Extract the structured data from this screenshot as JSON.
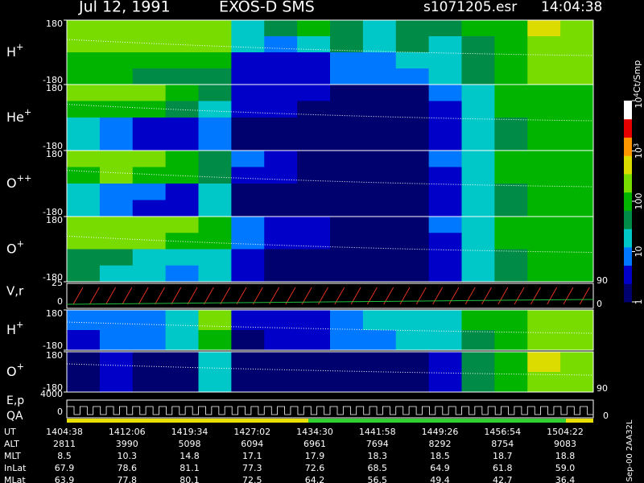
{
  "header": {
    "date": "Jul 12, 1991",
    "instrument": "EXOS-D SMS",
    "file": "s1071205.esr",
    "time": "14:04:38"
  },
  "colorscale": [
    "#00006e",
    "#0000c8",
    "#0078ff",
    "#00c8c8",
    "#008c46",
    "#00b400",
    "#78dc00",
    "#dcdc00",
    "#ff9600",
    "#e60000",
    "#ffffff"
  ],
  "panels": [
    {
      "ion": "H",
      "charge": "+",
      "ylim": [
        -180,
        180
      ],
      "yticks": [
        180,
        -180
      ],
      "levels": [
        [
          2.3,
          2.4,
          2.3,
          2.5,
          2.4,
          1.2,
          1.5,
          1.8,
          1.4,
          1.3,
          1.6,
          1.5,
          1.8,
          2.0,
          2.6,
          2.4
        ],
        [
          2.5,
          2.4,
          2.2,
          2.3,
          2.2,
          1.0,
          0.6,
          1.0,
          1.5,
          1.2,
          1.4,
          1.3,
          1.7,
          2.0,
          2.5,
          2.5
        ],
        [
          2.0,
          2.1,
          2.0,
          1.9,
          1.8,
          0.5,
          0.4,
          0.5,
          0.8,
          0.9,
          1.0,
          1.1,
          1.6,
          1.9,
          2.3,
          2.4
        ],
        [
          1.8,
          1.9,
          1.7,
          1.6,
          1.5,
          0.4,
          0.3,
          0.4,
          0.6,
          0.7,
          0.8,
          1.0,
          1.5,
          1.9,
          2.2,
          2.3
        ]
      ]
    },
    {
      "ion": "He",
      "charge": "+",
      "ylim": [
        -180,
        180
      ],
      "yticks": [
        180,
        -180
      ],
      "levels": [
        [
          2.2,
          2.3,
          2.2,
          2.0,
          1.4,
          0.3,
          0.2,
          0.2,
          0.1,
          0.1,
          0.1,
          0.6,
          1.2,
          1.8,
          2.0,
          2.1
        ],
        [
          2.0,
          2.1,
          1.8,
          1.5,
          1.3,
          0.3,
          0.2,
          0.1,
          0.1,
          0.1,
          0.1,
          0.5,
          1.1,
          1.8,
          2.0,
          2.1
        ],
        [
          1.0,
          0.8,
          0.5,
          0.4,
          0.9,
          0.1,
          0.1,
          0.1,
          0.1,
          0.1,
          0.1,
          0.5,
          1.1,
          1.7,
          2.0,
          2.0
        ],
        [
          1.1,
          0.6,
          0.3,
          0.3,
          0.9,
          0.1,
          0.1,
          0.1,
          0.1,
          0.1,
          0.1,
          0.4,
          1.0,
          1.7,
          1.9,
          2.0
        ]
      ]
    },
    {
      "ion": "O",
      "charge": "++",
      "ylim": [
        -180,
        180
      ],
      "yticks": [
        180,
        -180
      ],
      "levels": [
        [
          2.3,
          2.3,
          2.2,
          2.1,
          1.6,
          0.6,
          0.3,
          0.1,
          0.1,
          0.1,
          0.1,
          0.6,
          1.2,
          1.8,
          2.0,
          2.1
        ],
        [
          2.1,
          2.2,
          2.0,
          1.8,
          1.5,
          0.5,
          0.3,
          0.1,
          0.1,
          0.1,
          0.1,
          0.5,
          1.1,
          1.8,
          2.0,
          2.1
        ],
        [
          1.0,
          0.9,
          0.6,
          0.5,
          1.0,
          0.1,
          0.1,
          0.1,
          0.1,
          0.1,
          0.1,
          0.4,
          1.1,
          1.7,
          2.0,
          2.0
        ],
        [
          1.1,
          0.7,
          0.4,
          0.4,
          1.0,
          0.1,
          0.1,
          0.1,
          0.1,
          0.1,
          0.1,
          0.4,
          1.0,
          1.7,
          1.9,
          2.0
        ]
      ]
    },
    {
      "ion": "O",
      "charge": "+",
      "ylim": [
        -180,
        180
      ],
      "yticks": [
        180,
        -180
      ],
      "levels": [
        [
          2.4,
          2.4,
          2.3,
          2.2,
          1.8,
          0.8,
          0.4,
          0.2,
          0.1,
          0.1,
          0.1,
          0.6,
          1.2,
          1.8,
          2.0,
          2.1
        ],
        [
          2.3,
          2.3,
          2.2,
          2.1,
          1.9,
          0.6,
          0.4,
          0.2,
          0.1,
          0.1,
          0.1,
          0.5,
          1.1,
          1.8,
          2.0,
          2.1
        ],
        [
          1.6,
          1.5,
          1.2,
          1.1,
          1.3,
          0.2,
          0.1,
          0.1,
          0.1,
          0.1,
          0.1,
          0.5,
          1.1,
          1.7,
          2.0,
          2.0
        ],
        [
          1.5,
          1.2,
          1.0,
          0.9,
          1.2,
          0.2,
          0.1,
          0.1,
          0.1,
          0.1,
          0.1,
          0.4,
          1.0,
          1.7,
          1.9,
          2.0
        ]
      ]
    }
  ],
  "vr": {
    "label": "V,r",
    "yticks": [
      25,
      0
    ],
    "y2ticks": [
      90,
      0
    ]
  },
  "lower": [
    {
      "ion": "H",
      "charge": "+",
      "ylim": [
        -180,
        180
      ],
      "yticks": [
        180,
        -180
      ],
      "levels": [
        [
          0.6,
          0.9,
          0.8,
          1.2,
          2.3,
          0.2,
          0.3,
          0.4,
          0.9,
          1.0,
          1.2,
          1.3,
          1.8,
          2.1,
          2.4,
          2.3
        ],
        [
          0.4,
          0.7,
          0.6,
          1.0,
          2.0,
          0.1,
          0.2,
          0.3,
          0.6,
          0.8,
          1.0,
          1.2,
          1.7,
          2.0,
          2.3,
          2.2
        ]
      ]
    },
    {
      "ion": "O",
      "charge": "+",
      "ylim": [
        -180,
        180
      ],
      "yticks": [
        180,
        -180
      ],
      "y2ticks": [
        90
      ],
      "levels": [
        [
          0.1,
          0.3,
          0.1,
          0.1,
          1.3,
          0.1,
          0.1,
          0.1,
          0.1,
          0.1,
          0.1,
          0.2,
          1.7,
          2.1,
          2.6,
          2.5
        ],
        [
          0.1,
          0.2,
          0.1,
          0.1,
          1.1,
          0.1,
          0.1,
          0.1,
          0.1,
          0.1,
          0.1,
          0.2,
          1.6,
          2.0,
          2.5,
          2.4
        ]
      ]
    }
  ],
  "ep": {
    "label": "E,p",
    "label2": "QA",
    "yticks": [
      4000,
      0
    ],
    "y2ticks": [
      0
    ]
  },
  "colorbar": {
    "title": "Ct/Smp",
    "ticks": [
      {
        "value": 0,
        "label": "1"
      },
      {
        "value": 1,
        "label": "10"
      },
      {
        "value": 2,
        "label": "100"
      },
      {
        "value": 3,
        "base": "10",
        "exp": "3"
      },
      {
        "value": 4,
        "base": "10",
        "exp": "4"
      }
    ]
  },
  "footer": {
    "rows": [
      {
        "name": "UT",
        "cells": [
          "1404:38",
          "1412:06",
          "1419:34",
          "1427:02",
          "1434:30",
          "1441:58",
          "1449:26",
          "1456:54",
          "1504:22"
        ]
      },
      {
        "name": "ALT",
        "cells": [
          "2811",
          "3990",
          "5098",
          "6094",
          "6961",
          "7694",
          "8292",
          "8754",
          "9083"
        ]
      },
      {
        "name": "MLT",
        "cells": [
          "8.5",
          "10.3",
          "14.8",
          "17.1",
          "17.9",
          "18.3",
          "18.5",
          "18.7",
          "18.8"
        ]
      },
      {
        "name": "InLat",
        "cells": [
          "67.9",
          "78.6",
          "81.1",
          "77.3",
          "72.6",
          "68.5",
          "64.9",
          "61.8",
          "59.0"
        ]
      },
      {
        "name": "MLat",
        "cells": [
          "63.9",
          "77.8",
          "80.1",
          "72.5",
          "64.2",
          "56.5",
          "49.4",
          "42.7",
          "36.4"
        ]
      }
    ],
    "note": "Sep-00 2AA32L"
  }
}
